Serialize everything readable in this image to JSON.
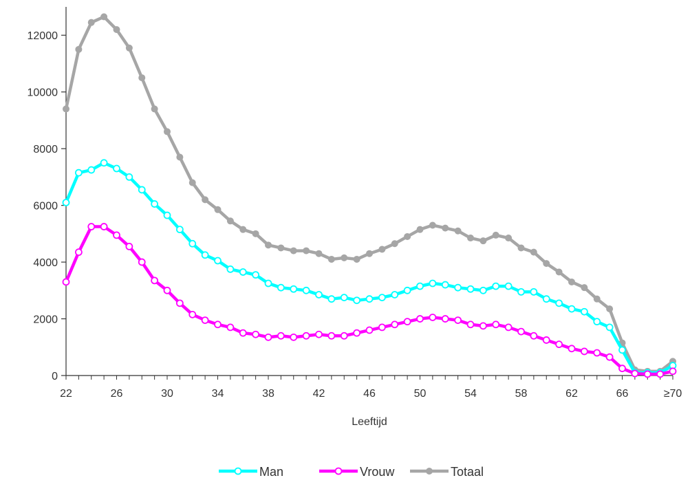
{
  "chart_data": {
    "type": "line",
    "title": "",
    "xlabel": "Leeftijd",
    "ylabel": "",
    "ylim": [
      0,
      13000
    ],
    "yticks": [
      0,
      2000,
      4000,
      6000,
      8000,
      10000,
      12000
    ],
    "ytick_labels": [
      "0",
      "2000",
      "4000",
      "6000",
      "8000",
      "10000",
      "12000"
    ],
    "x": [
      22,
      23,
      24,
      25,
      26,
      27,
      28,
      29,
      30,
      31,
      32,
      33,
      34,
      35,
      36,
      37,
      38,
      39,
      40,
      41,
      42,
      43,
      44,
      45,
      46,
      47,
      48,
      49,
      50,
      51,
      52,
      53,
      54,
      55,
      56,
      57,
      58,
      59,
      60,
      61,
      62,
      63,
      64,
      65,
      66,
      67,
      68,
      69,
      70
    ],
    "xtick_values": [
      22,
      26,
      30,
      34,
      38,
      42,
      46,
      50,
      54,
      58,
      62,
      66,
      70
    ],
    "xtick_labels": [
      "22",
      "26",
      "30",
      "34",
      "38",
      "42",
      "46",
      "50",
      "54",
      "58",
      "62",
      "66",
      "≥70"
    ],
    "grid": false,
    "legend_position": "bottom",
    "series": [
      {
        "name": "Man",
        "color": "#00FFFF",
        "marker": "hollow-circle",
        "values": [
          6100,
          7150,
          7250,
          7500,
          7300,
          7000,
          6550,
          6050,
          5650,
          5150,
          4650,
          4250,
          4050,
          3750,
          3650,
          3550,
          3250,
          3100,
          3050,
          3000,
          2850,
          2700,
          2750,
          2650,
          2700,
          2750,
          2850,
          3000,
          3150,
          3250,
          3200,
          3100,
          3050,
          3000,
          3150,
          3150,
          2950,
          2950,
          2700,
          2550,
          2350,
          2250,
          1900,
          1700,
          900,
          100,
          100,
          100,
          350
        ]
      },
      {
        "name": "Vrouw",
        "color": "#FF00FF",
        "marker": "hollow-circle",
        "values": [
          3300,
          4350,
          5250,
          5250,
          4950,
          4550,
          4000,
          3350,
          3000,
          2550,
          2150,
          1950,
          1800,
          1700,
          1500,
          1450,
          1350,
          1400,
          1350,
          1400,
          1450,
          1400,
          1400,
          1500,
          1600,
          1700,
          1800,
          1900,
          2000,
          2050,
          2000,
          1950,
          1800,
          1750,
          1800,
          1700,
          1550,
          1400,
          1250,
          1100,
          950,
          850,
          800,
          650,
          250,
          70,
          50,
          50,
          150
        ]
      },
      {
        "name": "Totaal",
        "color": "#A6A6A6",
        "marker": "filled-circle",
        "values": [
          9400,
          11500,
          12450,
          12650,
          12200,
          11550,
          10500,
          9400,
          8600,
          7700,
          6800,
          6200,
          5850,
          5450,
          5150,
          5000,
          4600,
          4500,
          4400,
          4400,
          4300,
          4100,
          4150,
          4100,
          4300,
          4450,
          4650,
          4900,
          5150,
          5300,
          5200,
          5100,
          4850,
          4750,
          4950,
          4850,
          4500,
          4350,
          3950,
          3650,
          3300,
          3100,
          2700,
          2350,
          1150,
          200,
          150,
          150,
          500
        ]
      }
    ]
  }
}
